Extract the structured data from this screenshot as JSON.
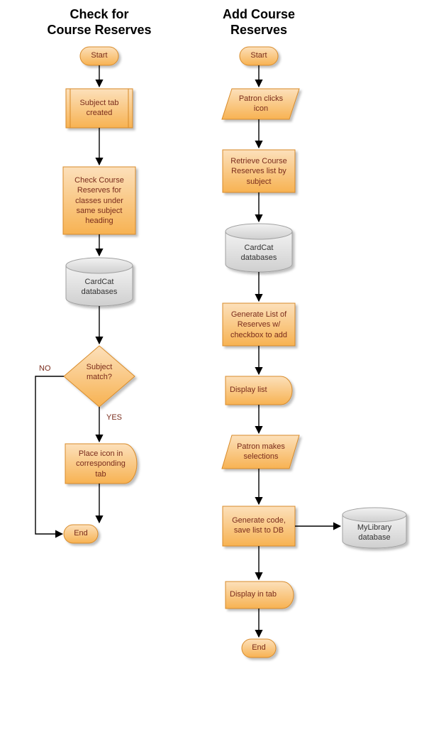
{
  "colors": {
    "orange_fill_top": "#fce0bb",
    "orange_fill_bottom": "#f7b252",
    "orange_stroke": "#d88b2a",
    "grey_fill_top": "#f2f2f2",
    "grey_fill_bottom": "#cfcfcf",
    "grey_stroke": "#a0a0a0",
    "text_dark": "#7a2c1c",
    "edge": "#000000",
    "shadow": "rgba(0,0,0,0.25)",
    "title_text": "#000000",
    "background": "#ffffff"
  },
  "left": {
    "title": "Check for\nCourse Reserves",
    "start": "Start",
    "subject_tab": "Subject tab\ncreated",
    "check_reserves": "Check Course\nReserves for\nclasses under\nsame subject\nheading",
    "db": "CardCat\ndatabases",
    "decision": "Subject\nmatch?",
    "yes": "YES",
    "no": "NO",
    "place_icon": "Place icon in\ncorresponding\ntab",
    "end": "End"
  },
  "right": {
    "title": "Add Course\nReserves",
    "start": "Start",
    "patron_clicks": "Patron clicks\nicon",
    "retrieve": "Retrieve Course\nReserves list by\nsubject",
    "db": "CardCat\ndatabases",
    "generate_list": "Generate List of\nReserves w/\ncheckbox to add",
    "display_list": "Display list",
    "patron_makes": "Patron makes\nselections",
    "generate_code": "Generate code,\nsave list to DB",
    "mylib": "MyLibrary\ndatabase",
    "display_tab": "Display in tab",
    "end": "End"
  }
}
